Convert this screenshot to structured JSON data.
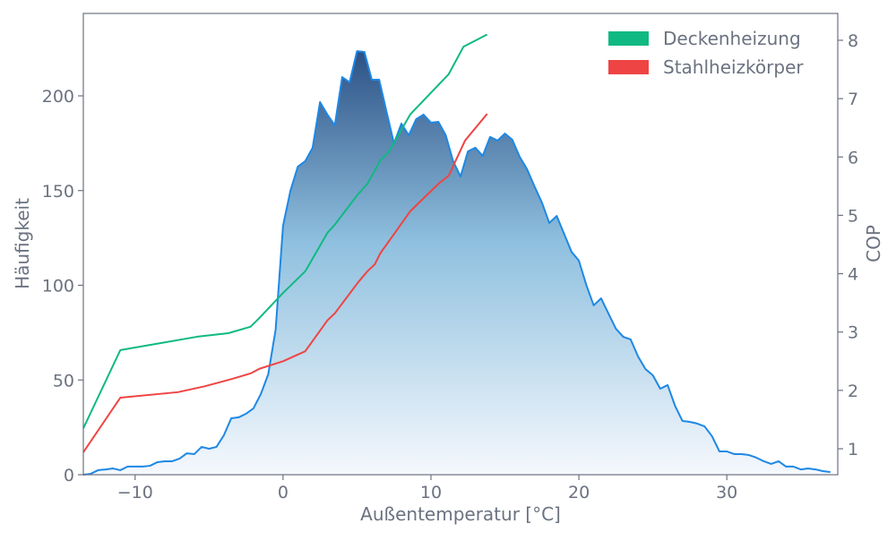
{
  "chart_data": {
    "type": "area",
    "xlabel": "Außentemperatur [°C]",
    "ylabel_left": "Häufigkeit",
    "ylabel_right": "COP",
    "xlim": [
      -13.5,
      37.5
    ],
    "ylim_left": [
      0,
      243.5
    ],
    "ylim_right": [
      0.555,
      8.46
    ],
    "xticks": [
      -10,
      0,
      10,
      20,
      30
    ],
    "xtick_labels": [
      "−10",
      "0",
      "10",
      "20",
      "30"
    ],
    "yticks_left": [
      0,
      50,
      100,
      150,
      200
    ],
    "yticks_right": [
      1,
      2,
      3,
      4,
      5,
      6,
      7,
      8
    ],
    "grid": false,
    "legend_position": "top-right",
    "histogram": {
      "name": "Häufigkeit",
      "color": "#1e88e5",
      "fill_top": "#2c5185",
      "fill_bottom": "#f5f8fd",
      "x_start": -13.5,
      "x_step": 0.5,
      "values": [
        0,
        0.5,
        2.4,
        2.8,
        3.3,
        2.4,
        4.3,
        4.3,
        4.3,
        4.7,
        6.6,
        7.1,
        7.1,
        8.5,
        11.3,
        10.9,
        14.7,
        13.7,
        14.7,
        20.8,
        29.8,
        30.3,
        32.2,
        35,
        42.6,
        53,
        76.6,
        131.4,
        149.9,
        162.6,
        165.5,
        172.6,
        196.7,
        190.1,
        184.4,
        209.9,
        207.1,
        223.6,
        223.2,
        208.5,
        208.5,
        191.5,
        174.9,
        185.3,
        179.2,
        187.7,
        190.1,
        185.8,
        186.3,
        179.2,
        165.5,
        157.4,
        170.7,
        172.6,
        168.3,
        178.3,
        176.4,
        180.1,
        176.8,
        167.8,
        161.2,
        152.2,
        143.7,
        132.9,
        136.6,
        127.2,
        117.7,
        113,
        100.2,
        89.4,
        93.1,
        85.1,
        77.1,
        72.8,
        71.4,
        62.4,
        55.8,
        52.5,
        45.4,
        47.3,
        36.4,
        28.4,
        27.9,
        27,
        25.5,
        20.3,
        12.3,
        12.3,
        10.9,
        10.9,
        10.4,
        9,
        7.1,
        5.7,
        7.1,
        4.3,
        4.3,
        2.8,
        3.3,
        2.8,
        1.9,
        1.4
      ]
    },
    "series": [
      {
        "name": "Deckenheizung",
        "color": "#10b981",
        "x": [
          -13.5,
          -11,
          -5.8,
          -3.7,
          -2.2,
          -1.6,
          0,
          1.5,
          3.0,
          3.5,
          5.0,
          5.7,
          6.6,
          7.1,
          8.6,
          11.2,
          12.2,
          13.8
        ],
        "y": [
          1.35,
          2.69,
          2.92,
          2.98,
          3.09,
          3.24,
          3.67,
          4.04,
          4.7,
          4.84,
          5.34,
          5.54,
          5.95,
          6.07,
          6.73,
          7.42,
          7.89,
          8.1
        ]
      },
      {
        "name": "Stahlheizkörper",
        "color": "#ef4444",
        "x": [
          -13.5,
          -11,
          -7.1,
          -5.3,
          -3.4,
          -2.2,
          -1.6,
          0,
          1.5,
          3.0,
          3.5,
          5.1,
          5.7,
          6.2,
          6.6,
          7.0,
          8.6,
          10.5,
          11.2,
          12.3,
          13.8
        ],
        "y": [
          0.94,
          1.875,
          1.97,
          2.07,
          2.2,
          2.29,
          2.37,
          2.5,
          2.67,
          3.2,
          3.32,
          3.86,
          4.04,
          4.16,
          4.36,
          4.5,
          5.07,
          5.54,
          5.68,
          6.28,
          6.74
        ]
      }
    ],
    "legend": [
      "Deckenheizung",
      "Stahlheizkörper"
    ]
  }
}
